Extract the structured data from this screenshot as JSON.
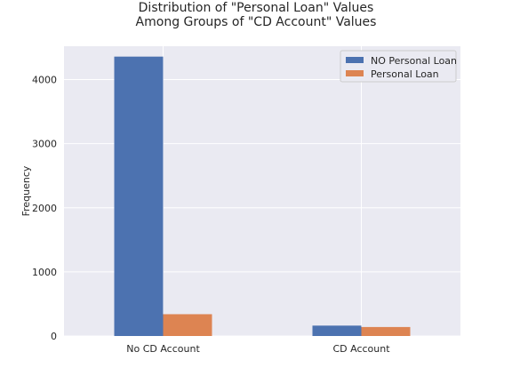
{
  "chart_data": {
    "type": "bar",
    "title_lines": [
      "Distribution of \"Personal Loan\" Values",
      "Among Groups of \"CD Account\" Values"
    ],
    "categories": [
      "No CD Account",
      "CD Account"
    ],
    "series": [
      {
        "name": "NO Personal Loan",
        "values": [
          4358,
          162
        ],
        "color": "#4c72b0"
      },
      {
        "name": "Personal Loan",
        "values": [
          340,
          140
        ],
        "color": "#dd8452"
      }
    ],
    "xlabel": "",
    "ylabel": "Frequency",
    "ylim": [
      0,
      4520
    ],
    "yticks": [
      0,
      1000,
      2000,
      3000,
      4000
    ],
    "grid": true,
    "legend_position": "top-right",
    "background": "#eaeaf2",
    "grid_color": "#ffffff"
  }
}
